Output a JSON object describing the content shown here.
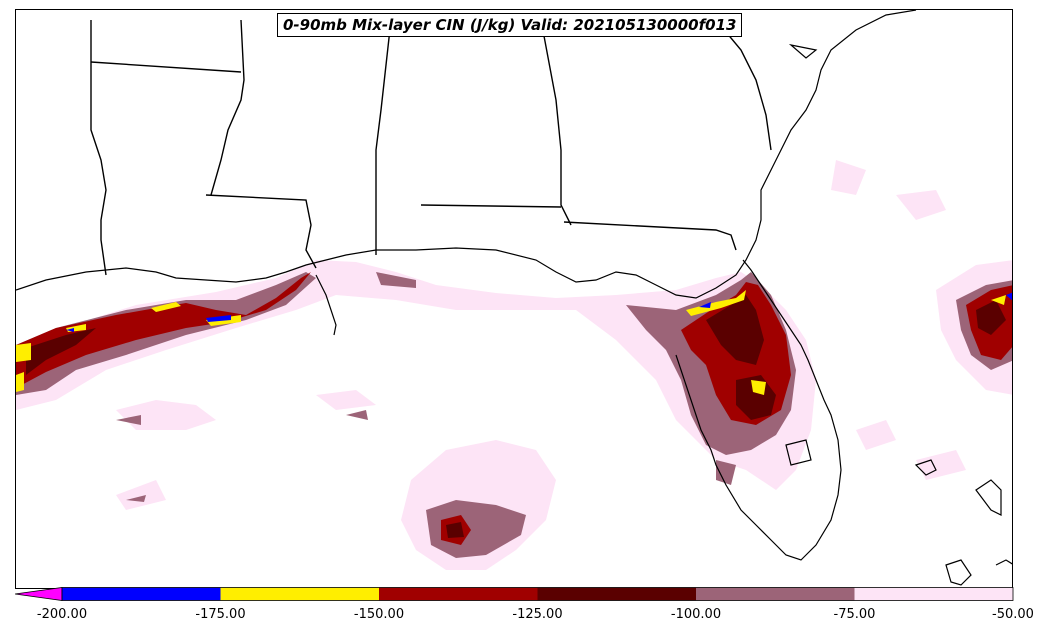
{
  "title": "0-90mb Mix-layer CIN (J/kg) Valid: 202105130000f013",
  "colorbar": {
    "extend_below_color": "#ff00ff",
    "bins": [
      {
        "from": -200,
        "to": -175,
        "color": "#0000ff"
      },
      {
        "from": -175,
        "to": -150,
        "color": "#ffee00"
      },
      {
        "from": -150,
        "to": -125,
        "color": "#a00000"
      },
      {
        "from": -125,
        "to": -100,
        "color": "#5a0000"
      },
      {
        "from": -100,
        "to": -75,
        "color": "#9c6478"
      },
      {
        "from": -75,
        "to": -50,
        "color": "#fde4f6"
      }
    ],
    "tick_labels": [
      "-200.00",
      "-175.00",
      "-150.00",
      "-125.00",
      "-100.00",
      "-75.00",
      "-50.00"
    ]
  },
  "map": {
    "region": "Gulf of Mexico / Florida",
    "background_color": "#ffffff",
    "outline_color": "#000000"
  }
}
